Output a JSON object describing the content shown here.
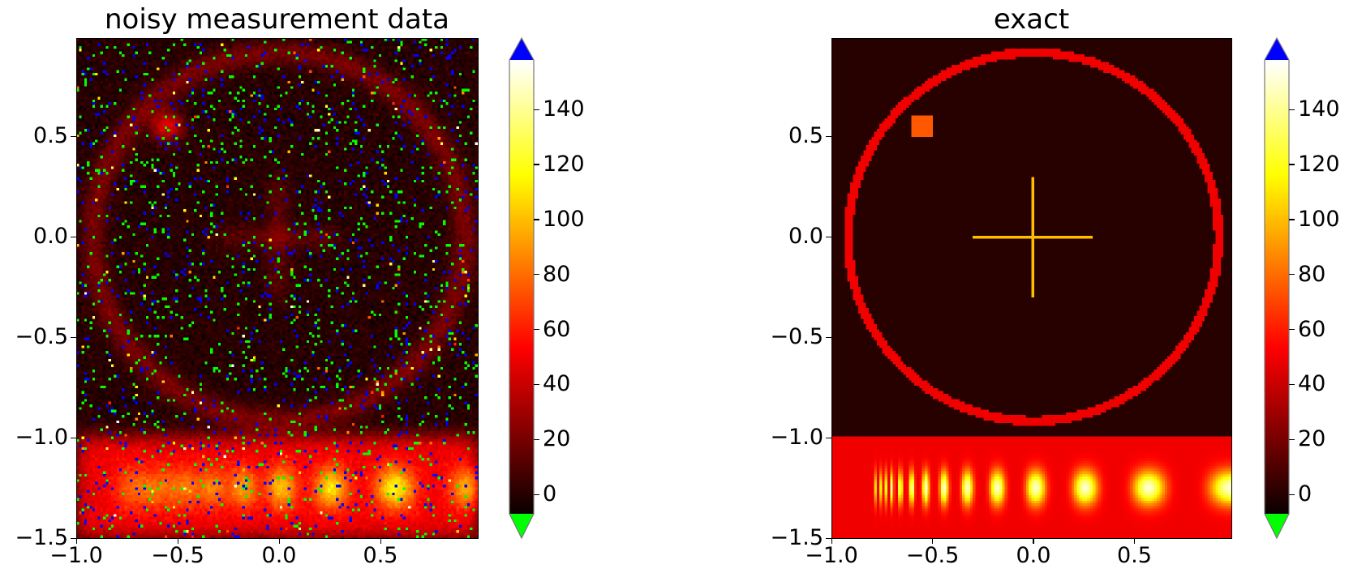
{
  "chart_data": {
    "type": "heatmap",
    "colormap": "hot",
    "vmin": -7,
    "vmax": 158,
    "over_color": "#0000ff",
    "under_color": "#00ff00",
    "xlim": [
      -1.0,
      0.98
    ],
    "ylim": [
      -1.5,
      0.99
    ],
    "xticks": [
      -1.0,
      -0.5,
      0.0,
      0.5
    ],
    "xtick_labels": [
      "−1.0",
      "−0.5",
      "0.0",
      "0.5"
    ],
    "yticks": [
      -1.5,
      -1.0,
      -0.5,
      0.0,
      0.5
    ],
    "ytick_labels": [
      "−1.5",
      "−1.0",
      "−0.5",
      "0.0",
      "0.5"
    ],
    "colorbar_ticks": [
      0,
      20,
      40,
      60,
      80,
      100,
      120,
      140
    ],
    "colorbar_tick_labels": [
      "0",
      "20",
      "40",
      "60",
      "80",
      "100",
      "120",
      "140"
    ],
    "colorbar_extend": "both",
    "panels": [
      {
        "title": "noisy measurement data",
        "kind": "noisy"
      },
      {
        "title": "exact",
        "kind": "exact"
      }
    ],
    "exact_field": {
      "background_value": 0,
      "ring": {
        "center": [
          0,
          0
        ],
        "inner_radius": 0.895,
        "outer_radius": 0.94,
        "value": 50
      },
      "square": {
        "x": [
          -0.6,
          -0.5
        ],
        "y": [
          0.5,
          0.6
        ],
        "value": 75
      },
      "cross": {
        "half_length": 0.3,
        "half_width": 0.008,
        "value": 100
      },
      "band": {
        "y": [
          -1.5,
          -1.0
        ],
        "base_value": 50,
        "peak_value": 150,
        "center_y": -1.25,
        "start_x": -0.79,
        "peak_x": [
          0.57,
          0.22,
          0.0,
          -0.18,
          -0.33,
          -0.45
        ]
      }
    }
  }
}
